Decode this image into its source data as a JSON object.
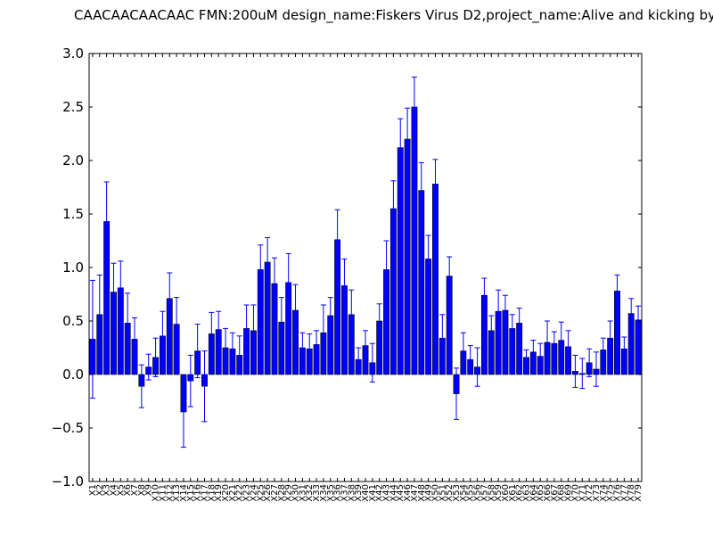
{
  "chart_data": {
    "type": "bar",
    "title": "CAACAACAACAAC  FMN:200uM  design_name:Fiskers Virus D2,project_name:Alive and kicking by",
    "xlabel": "",
    "ylabel": "",
    "ylim": [
      -1.0,
      3.0
    ],
    "yticks": [
      "−1.0",
      "−0.5",
      "0.0",
      "0.5",
      "1.0",
      "1.5",
      "2.0",
      "2.5",
      "3.0"
    ],
    "ytick_values": [
      -1.0,
      -0.5,
      0.0,
      0.5,
      1.0,
      1.5,
      2.0,
      2.5,
      3.0
    ],
    "grid": false,
    "bar_color": "#0000ff",
    "error_color": "#0000ff",
    "categories": [
      "X1",
      "X2",
      "X3",
      "X4",
      "X5",
      "X6",
      "X7",
      "X8",
      "X9",
      "X10",
      "X11",
      "X12",
      "X13",
      "X14",
      "X15",
      "X16",
      "X17",
      "X18",
      "X19",
      "X20",
      "X21",
      "X22",
      "X23",
      "X24",
      "X25",
      "X26",
      "X27",
      "X28",
      "X29",
      "X30",
      "X31",
      "X32",
      "X33",
      "X34",
      "X35",
      "X36",
      "X37",
      "X38",
      "X39",
      "X40",
      "X41",
      "X42",
      "X43",
      "X44",
      "X45",
      "X46",
      "X47",
      "X48",
      "X49",
      "X50",
      "X51",
      "X52",
      "X53",
      "X54",
      "X55",
      "X56",
      "X57",
      "X58",
      "X59",
      "X60",
      "X61",
      "X62",
      "X63",
      "X64",
      "X65",
      "X66",
      "X67",
      "X68",
      "X69",
      "X70",
      "X71",
      "X72",
      "X73",
      "X74",
      "X75",
      "X76",
      "X77",
      "X78",
      "X79"
    ],
    "values": [
      0.33,
      0.56,
      1.43,
      0.77,
      0.81,
      0.48,
      0.33,
      -0.11,
      0.07,
      0.16,
      0.36,
      0.71,
      0.47,
      -0.35,
      -0.06,
      0.22,
      -0.11,
      0.38,
      0.42,
      0.25,
      0.24,
      0.18,
      0.43,
      0.41,
      0.98,
      1.05,
      0.85,
      0.49,
      0.86,
      0.6,
      0.25,
      0.24,
      0.28,
      0.39,
      0.55,
      1.26,
      0.83,
      0.56,
      0.14,
      0.27,
      0.11,
      0.5,
      0.98,
      1.55,
      2.12,
      2.2,
      2.5,
      1.72,
      1.08,
      1.78,
      0.34,
      0.92,
      -0.18,
      0.22,
      0.14,
      0.07,
      0.74,
      0.41,
      0.59,
      0.6,
      0.43,
      0.48,
      0.16,
      0.21,
      0.17,
      0.3,
      0.29,
      0.32,
      0.26,
      0.03,
      0.01,
      0.11,
      0.05,
      0.23,
      0.34,
      0.78,
      0.24,
      0.57,
      0.51
    ],
    "errors": [
      0.55,
      0.37,
      0.37,
      0.27,
      0.25,
      0.28,
      0.2,
      0.2,
      0.12,
      0.18,
      0.23,
      0.24,
      0.25,
      0.33,
      0.24,
      0.25,
      0.33,
      0.2,
      0.17,
      0.18,
      0.15,
      0.18,
      0.22,
      0.24,
      0.23,
      0.23,
      0.24,
      0.23,
      0.27,
      0.24,
      0.14,
      0.14,
      0.13,
      0.26,
      0.17,
      0.28,
      0.25,
      0.23,
      0.11,
      0.14,
      0.18,
      0.16,
      0.27,
      0.26,
      0.27,
      0.29,
      0.28,
      0.26,
      0.22,
      0.23,
      0.22,
      0.18,
      0.24,
      0.17,
      0.13,
      0.18,
      0.16,
      0.14,
      0.2,
      0.14,
      0.13,
      0.14,
      0.07,
      0.11,
      0.12,
      0.2,
      0.11,
      0.17,
      0.15,
      0.15,
      0.14,
      0.13,
      0.16,
      0.11,
      0.16,
      0.15,
      0.11,
      0.14,
      0.13
    ]
  }
}
